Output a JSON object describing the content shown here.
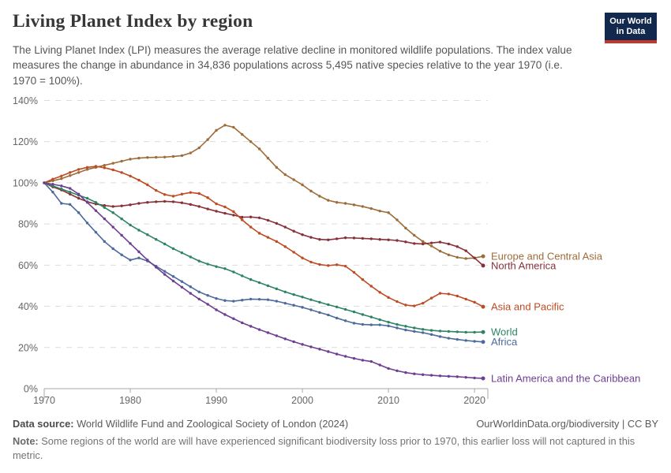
{
  "header": {
    "title": "Living Planet Index by region",
    "subtitle": "The Living Planet Index (LPI) measures the average relative decline in monitored wildlife populations. The index value measures the change in abundance in 34,836 populations across 5,495 native species relative to the year 1970 (i.e. 1970 = 100%).",
    "logo": {
      "line1": "Our World",
      "line2": "in Data",
      "bg_color": "#12294d",
      "bar_color": "#c0372d"
    }
  },
  "chart_data": {
    "type": "line",
    "title": "Living Planet Index by region",
    "xlabel": "",
    "ylabel": "",
    "ylim": [
      0,
      140
    ],
    "yticks": [
      0,
      20,
      40,
      60,
      80,
      100,
      120,
      140
    ],
    "ytick_suffix": "%",
    "xticks": [
      1970,
      1980,
      1990,
      2000,
      2010,
      2020
    ],
    "grid": "horizontal-dashed",
    "legend_position": "right-of-line-ends",
    "x": [
      1970,
      1971,
      1972,
      1973,
      1974,
      1975,
      1976,
      1977,
      1978,
      1979,
      1980,
      1981,
      1982,
      1983,
      1984,
      1985,
      1986,
      1987,
      1988,
      1989,
      1990,
      1991,
      1992,
      1993,
      1994,
      1995,
      1996,
      1997,
      1998,
      1999,
      2000,
      2001,
      2002,
      2003,
      2004,
      2005,
      2006,
      2007,
      2008,
      2009,
      2010,
      2011,
      2012,
      2013,
      2014,
      2015,
      2016,
      2017,
      2018,
      2019,
      2020,
      2021
    ],
    "series": [
      {
        "name": "Europe and Central Asia",
        "color": "#9e6c39",
        "values": [
          100,
          101,
          102,
          103.5,
          105,
          106.5,
          107.5,
          108.5,
          109.5,
          110.5,
          111.5,
          112,
          112.3,
          112.4,
          112.5,
          112.8,
          113.2,
          114.5,
          117,
          121,
          125.5,
          128,
          127,
          123.5,
          120,
          116.5,
          112,
          107.5,
          104,
          101.5,
          99,
          96,
          93.5,
          91.5,
          90.5,
          90,
          89.3,
          88.5,
          87.5,
          86.3,
          85.5,
          82,
          78,
          74.5,
          71.5,
          69.3,
          66.8,
          65,
          63.8,
          63.2,
          63.5,
          64.3
        ]
      },
      {
        "name": "North America",
        "color": "#883039",
        "values": [
          100,
          98,
          96.5,
          94.5,
          92.5,
          90.8,
          89.7,
          89,
          88.5,
          88.8,
          89.3,
          90,
          90.5,
          90.8,
          91,
          90.8,
          90.3,
          89.5,
          88.5,
          87.3,
          86.2,
          85.2,
          84.3,
          83.3,
          83.4,
          83,
          81.8,
          80.3,
          78.5,
          76.5,
          74.8,
          73.5,
          72.5,
          72.3,
          72.8,
          73.3,
          73.2,
          73,
          72.8,
          72.5,
          72.3,
          72,
          71.3,
          70.5,
          70.3,
          70.8,
          71.2,
          70.3,
          69,
          67,
          63.5,
          59.8
        ]
      },
      {
        "name": "Asia and Pacific",
        "color": "#be4b23",
        "values": [
          100,
          101.8,
          103.3,
          105,
          106.5,
          107.5,
          108,
          107.3,
          106.3,
          105,
          103.3,
          101.3,
          99,
          96.3,
          94.3,
          93.5,
          94.5,
          95.3,
          94.8,
          92.8,
          89.8,
          88.3,
          86,
          82,
          78.5,
          75.5,
          73.5,
          71.5,
          69,
          66.3,
          63.5,
          61.5,
          60.3,
          59.8,
          60.2,
          59.5,
          56.5,
          53,
          49.8,
          46.8,
          44.3,
          42.3,
          40.6,
          40.2,
          41.5,
          44,
          46.3,
          46,
          45,
          43.5,
          42,
          39.8
        ]
      },
      {
        "name": "Africa",
        "color": "#4c6a9c",
        "values": [
          100,
          95.5,
          90,
          89.5,
          85.5,
          80.5,
          76,
          71.5,
          68,
          65,
          62.5,
          63.5,
          62,
          59.5,
          57,
          54.5,
          52,
          49.5,
          47,
          45.3,
          43.8,
          42.8,
          42.5,
          43,
          43.5,
          43.4,
          43.2,
          42.5,
          41.5,
          40.5,
          39.5,
          38.3,
          37,
          35.8,
          34.3,
          33,
          31.8,
          31.2,
          31,
          31,
          30.5,
          29.5,
          28.5,
          27.8,
          27.2,
          26.3,
          25.3,
          24.5,
          23.9,
          23.4,
          23,
          22.7
        ]
      },
      {
        "name": "World",
        "color": "#2c8465",
        "values": [
          100,
          98.5,
          97,
          95.5,
          94,
          92.5,
          90.5,
          88,
          85.5,
          82.5,
          79.5,
          77,
          74.8,
          72.5,
          70.3,
          68,
          66,
          64,
          62,
          60.5,
          59.3,
          58.3,
          56.7,
          54.8,
          53,
          51.5,
          50,
          48.5,
          47,
          45.7,
          44.5,
          43.2,
          42,
          40.8,
          39.7,
          38.5,
          37.3,
          36,
          34.8,
          33.5,
          32.3,
          31.2,
          30.3,
          29.5,
          28.8,
          28.3,
          28,
          27.8,
          27.6,
          27.4,
          27.4,
          27.5
        ]
      },
      {
        "name": "Latin America and the Caribbean",
        "color": "#6d3e91",
        "values": [
          100,
          99.3,
          98.5,
          97.3,
          94.5,
          90.5,
          86.5,
          82.5,
          78.5,
          74.5,
          70.5,
          66.5,
          62.5,
          59,
          55.5,
          52.3,
          49.3,
          46.3,
          43.5,
          41,
          38.3,
          36,
          34,
          32,
          30.3,
          28.7,
          27.2,
          25.7,
          24.2,
          22.8,
          21.5,
          20.3,
          19.2,
          18,
          16.8,
          15.7,
          14.7,
          13.8,
          13.2,
          11.5,
          9.8,
          8.7,
          7.8,
          7.2,
          6.8,
          6.5,
          6.2,
          6,
          5.8,
          5.5,
          5.2,
          5
        ]
      }
    ]
  },
  "footer": {
    "source_label": "Data source:",
    "source_text": " World Wildlife Fund and Zoological Society of London (2024)",
    "link": "OurWorldinData.org/biodiversity | CC BY",
    "note_label": "Note:",
    "note_text": " Some regions of the world are will have experienced significant biodiversity loss prior to 1970, this earlier loss will not captured in this metric."
  }
}
